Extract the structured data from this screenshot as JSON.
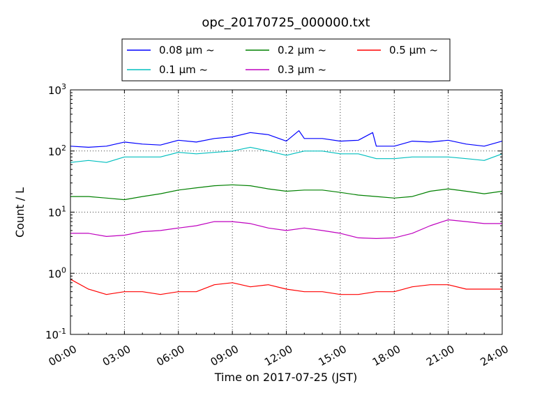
{
  "chart_data": {
    "type": "line",
    "title": "opc_20170725_000000.txt",
    "xlabel": "Time on 2017-07-25 (JST)",
    "ylabel": "Count / L",
    "x_unit": "hours",
    "xlim": [
      0,
      24
    ],
    "ylim": [
      0.1,
      1000
    ],
    "yscale": "log",
    "grid": true,
    "legend_position": "top-center",
    "x_ticks": [
      {
        "value": 0,
        "label": "00:00"
      },
      {
        "value": 3,
        "label": "03:00"
      },
      {
        "value": 6,
        "label": "06:00"
      },
      {
        "value": 9,
        "label": "09:00"
      },
      {
        "value": 12,
        "label": "12:00"
      },
      {
        "value": 15,
        "label": "15:00"
      },
      {
        "value": 18,
        "label": "18:00"
      },
      {
        "value": 21,
        "label": "21:00"
      },
      {
        "value": 24,
        "label": "24:00"
      }
    ],
    "y_ticks": [
      {
        "value": 0.1,
        "base": "10",
        "exp": "-1"
      },
      {
        "value": 1,
        "base": "10",
        "exp": "0"
      },
      {
        "value": 10,
        "base": "10",
        "exp": "1"
      },
      {
        "value": 100,
        "base": "10",
        "exp": "2"
      },
      {
        "value": 1000,
        "base": "10",
        "exp": "3"
      }
    ],
    "series": [
      {
        "name": "0.08 μm ~",
        "color": "#0000ff",
        "x": [
          0,
          1,
          2,
          3,
          4,
          5,
          6,
          7,
          8,
          9,
          10,
          11,
          12,
          12.7,
          13,
          14,
          15,
          16,
          16.8,
          17,
          18,
          19,
          20,
          21,
          22,
          23,
          24
        ],
        "y": [
          120,
          115,
          120,
          140,
          130,
          125,
          150,
          140,
          160,
          170,
          200,
          185,
          145,
          215,
          160,
          160,
          145,
          150,
          200,
          120,
          120,
          145,
          140,
          150,
          130,
          120,
          145
        ]
      },
      {
        "name": "0.1 μm ~",
        "color": "#00bfbf",
        "x": [
          0,
          1,
          2,
          3,
          4,
          5,
          6,
          7,
          8,
          9,
          10,
          11,
          12,
          13,
          14,
          15,
          16,
          17,
          18,
          19,
          20,
          21,
          22,
          23,
          24
        ],
        "y": [
          65,
          70,
          65,
          80,
          80,
          80,
          95,
          90,
          95,
          100,
          115,
          100,
          85,
          100,
          100,
          90,
          90,
          75,
          75,
          80,
          80,
          80,
          75,
          70,
          90
        ]
      },
      {
        "name": "0.2 μm ~",
        "color": "#008000",
        "x": [
          0,
          1,
          2,
          3,
          4,
          5,
          6,
          7,
          8,
          9,
          10,
          11,
          12,
          13,
          14,
          15,
          16,
          17,
          18,
          19,
          20,
          21,
          22,
          23,
          24
        ],
        "y": [
          18,
          18,
          17,
          16,
          18,
          20,
          23,
          25,
          27,
          28,
          27,
          24,
          22,
          23,
          23,
          21,
          19,
          18,
          17,
          18,
          22,
          24,
          22,
          20,
          22
        ]
      },
      {
        "name": "0.3 μm ~",
        "color": "#bf00bf",
        "x": [
          0,
          1,
          2,
          3,
          4,
          5,
          6,
          7,
          8,
          9,
          10,
          11,
          12,
          13,
          14,
          15,
          16,
          17,
          18,
          19,
          20,
          21,
          22,
          23,
          24
        ],
        "y": [
          4.5,
          4.5,
          4.0,
          4.2,
          4.8,
          5.0,
          5.5,
          6.0,
          7.0,
          7.0,
          6.5,
          5.5,
          5.0,
          5.5,
          5.0,
          4.5,
          3.8,
          3.7,
          3.8,
          4.5,
          6.0,
          7.5,
          7.0,
          6.5,
          6.5
        ]
      },
      {
        "name": "0.5 μm ~",
        "color": "#ff0000",
        "x": [
          0,
          1,
          2,
          3,
          4,
          5,
          6,
          7,
          8,
          9,
          10,
          11,
          12,
          13,
          14,
          15,
          16,
          17,
          18,
          19,
          20,
          21,
          22,
          23,
          24
        ],
        "y": [
          0.8,
          0.55,
          0.45,
          0.5,
          0.5,
          0.45,
          0.5,
          0.5,
          0.65,
          0.7,
          0.6,
          0.65,
          0.55,
          0.5,
          0.5,
          0.45,
          0.45,
          0.5,
          0.5,
          0.6,
          0.65,
          0.65,
          0.55,
          0.55,
          0.55
        ]
      }
    ]
  }
}
